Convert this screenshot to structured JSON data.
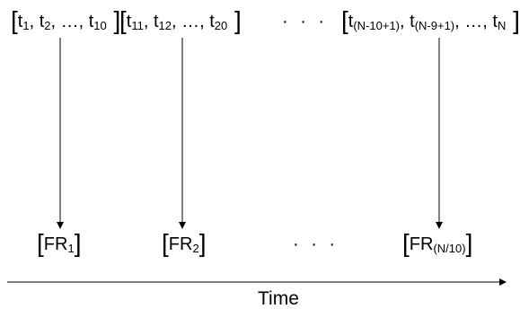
{
  "diagram": {
    "windows": [
      {
        "open": "[",
        "parts": [
          {
            "base": "t",
            "sub": "1"
          },
          {
            "text": ", "
          },
          {
            "base": "t",
            "sub": "2"
          },
          {
            "text": ", …, "
          },
          {
            "base": "t",
            "sub": "10"
          }
        ],
        "close": "]"
      },
      {
        "open": "[",
        "parts": [
          {
            "base": "t",
            "sub": "11"
          },
          {
            "text": ", "
          },
          {
            "base": "t",
            "sub": "12"
          },
          {
            "text": ", …, "
          },
          {
            "base": "t",
            "sub": "20"
          }
        ],
        "close": "]"
      },
      {
        "open": "[",
        "parts": [
          {
            "base": "t",
            "sub": "(N-10+1)"
          },
          {
            "text": ", "
          },
          {
            "base": "t",
            "sub": "(N-9+1)"
          },
          {
            "text": ", …, "
          },
          {
            "base": "t",
            "sub": "N"
          }
        ],
        "close": "]"
      }
    ],
    "top_ellipsis": "· · ·",
    "outputs": [
      {
        "open": "[",
        "base": "FR",
        "sub": "1",
        "close": "]"
      },
      {
        "open": "[",
        "base": "FR",
        "sub": "2",
        "close": "]"
      },
      {
        "open": "[",
        "base": "FR",
        "sub": "(N/10)",
        "close": "]"
      }
    ],
    "bottom_ellipsis": "· · ·",
    "axis_label": "Time"
  }
}
